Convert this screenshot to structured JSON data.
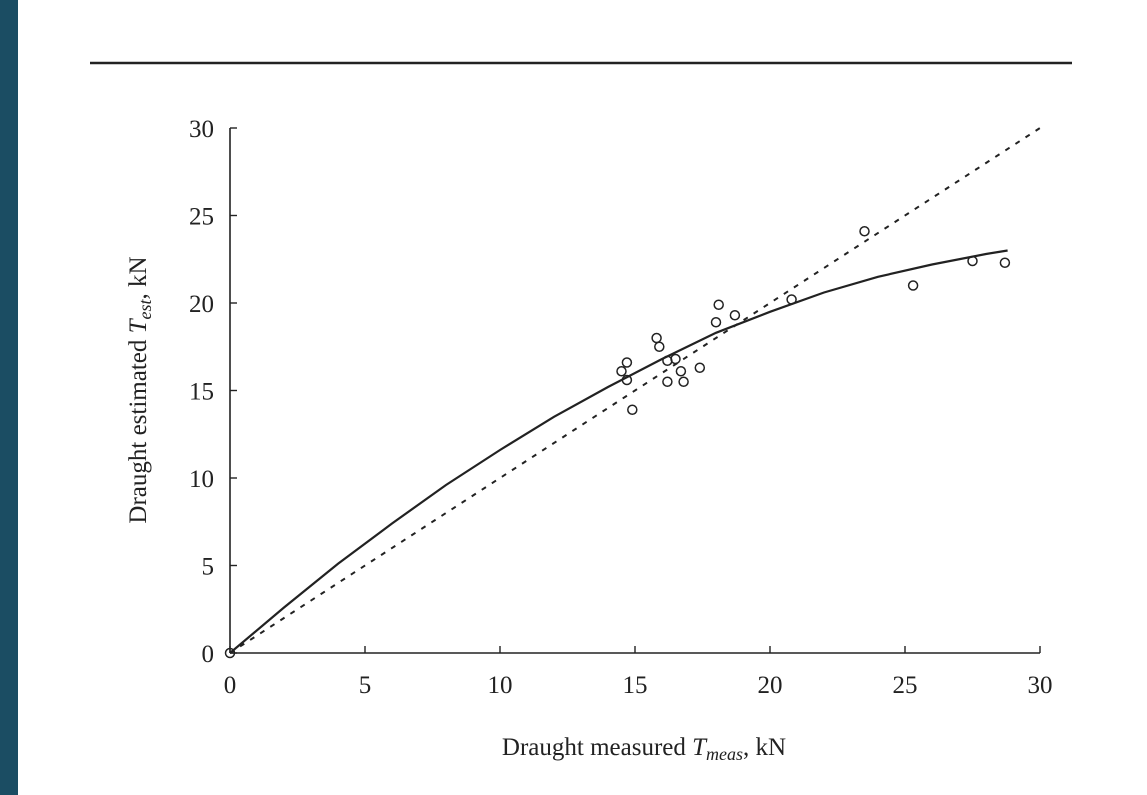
{
  "colors": {
    "frame": "#1b4d63",
    "background": "#ffffff",
    "ink": "#222222"
  },
  "chart_data": {
    "type": "scatter",
    "title": "",
    "xlabel": {
      "prefix": "Draught measured ",
      "symbol": "T",
      "subscript": "meas",
      "suffix": ", kN"
    },
    "ylabel": {
      "prefix": "Draught estimated ",
      "symbol": "T",
      "subscript": "est",
      "suffix": ", kN"
    },
    "xlim": [
      0,
      30
    ],
    "ylim": [
      0,
      30
    ],
    "xticks": [
      0,
      5,
      10,
      15,
      20,
      25,
      30
    ],
    "yticks": [
      0,
      5,
      10,
      15,
      20,
      25,
      30
    ],
    "grid": false,
    "series": [
      {
        "kind": "points",
        "marker": "open-circle",
        "x": [
          0,
          14.5,
          14.7,
          14.7,
          14.9,
          15.8,
          15.9,
          16.2,
          16.2,
          16.5,
          16.7,
          16.8,
          17.4,
          18.0,
          18.1,
          18.7,
          20.8,
          23.5,
          25.3,
          27.5,
          28.7
        ],
        "y": [
          0,
          16.1,
          16.6,
          15.6,
          13.9,
          18.0,
          17.5,
          16.7,
          15.5,
          16.8,
          16.1,
          15.5,
          16.3,
          18.9,
          19.9,
          19.3,
          20.2,
          24.1,
          21.0,
          22.4,
          22.3
        ]
      },
      {
        "kind": "fitted-curve",
        "style": "solid",
        "x": [
          0,
          2,
          4,
          6,
          8,
          10,
          12,
          14,
          16,
          18,
          20,
          22,
          24,
          26,
          28,
          28.8
        ],
        "y": [
          0,
          2.6,
          5.1,
          7.4,
          9.6,
          11.6,
          13.5,
          15.2,
          16.8,
          18.3,
          19.5,
          20.6,
          21.5,
          22.2,
          22.8,
          23.0
        ]
      },
      {
        "kind": "reference-line",
        "style": "dashed",
        "x": [
          0,
          30
        ],
        "y": [
          0,
          30
        ]
      }
    ]
  }
}
